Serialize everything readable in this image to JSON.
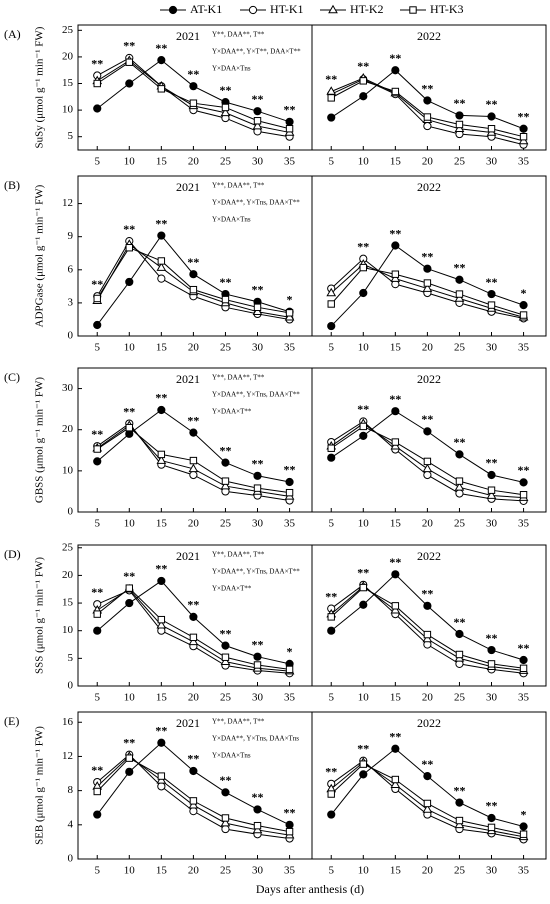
{
  "figure": {
    "xlabel": "Days after anthesis (d)"
  },
  "chart_data": [
    {
      "type": "line",
      "panel_label": "(A)",
      "title": "2021",
      "ylabel": "SuSy (μmol g⁻¹ min⁻¹ FW)",
      "annotations": [
        "Y**, DAA**, T**",
        "Y×DAA**, Y×T**, DAA×T**",
        "Y×DAA×Tns"
      ],
      "x": [
        5,
        10,
        15,
        20,
        25,
        30,
        35
      ],
      "xlim": [
        2,
        38.5
      ],
      "xticks": [
        5,
        10,
        15,
        20,
        25,
        30,
        35
      ],
      "ylim": [
        2.5,
        26
      ],
      "yticks": [
        5,
        10,
        15,
        20,
        25
      ],
      "significance": [
        "**",
        "**",
        "**",
        "**",
        "**",
        "**",
        "**"
      ],
      "series": [
        {
          "name": "AT-K1",
          "marker": "filled-circle",
          "color": "#000000",
          "values": [
            10.3,
            15,
            19.4,
            14.5,
            11.5,
            9.8,
            7.8
          ]
        },
        {
          "name": "HT-K1",
          "marker": "open-circle",
          "color": "#000000",
          "values": [
            16.5,
            19.8,
            14.5,
            10,
            8.5,
            6,
            5
          ]
        },
        {
          "name": "HT-K2",
          "marker": "open-triangle",
          "color": "#000000",
          "values": [
            15.5,
            19.3,
            14.5,
            10.8,
            9.5,
            7,
            5.8
          ]
        },
        {
          "name": "HT-K3",
          "marker": "open-square",
          "color": "#000000",
          "values": [
            15,
            19,
            14,
            11.3,
            10.5,
            8,
            6.5
          ]
        }
      ]
    },
    {
      "type": "line",
      "title": "2022",
      "x": [
        5,
        10,
        15,
        20,
        25,
        30,
        35
      ],
      "xlim": [
        2,
        38.5
      ],
      "xticks": [
        5,
        10,
        15,
        20,
        25,
        30,
        35
      ],
      "ylim": [
        2.5,
        26
      ],
      "significance": [
        "**",
        "**",
        "**",
        "**",
        "**",
        "**",
        "**"
      ],
      "series": [
        {
          "name": "AT-K1",
          "marker": "filled-circle",
          "color": "#000000",
          "values": [
            8.6,
            12.6,
            17.5,
            11.8,
            9,
            8.8,
            6.5
          ]
        },
        {
          "name": "HT-K1",
          "marker": "open-circle",
          "color": "#000000",
          "values": [
            13,
            15.8,
            13,
            7,
            5.5,
            5,
            3.5
          ]
        },
        {
          "name": "HT-K2",
          "marker": "open-triangle",
          "color": "#000000",
          "values": [
            13.5,
            16,
            13.2,
            8.2,
            6.5,
            5.8,
            4.2
          ]
        },
        {
          "name": "HT-K3",
          "marker": "open-square",
          "color": "#000000",
          "values": [
            12.3,
            15.5,
            13.5,
            8.7,
            7.3,
            6.5,
            5
          ]
        }
      ]
    },
    {
      "type": "line",
      "panel_label": "(B)",
      "title": "2021",
      "ylabel": "ADPGase (μmol g⁻¹ min⁻¹ FW)",
      "annotations": [
        "Y**, DAA**, T**",
        "Y×DAA**, Y×Tns, DAA×T**",
        "Y×DAA×Tns"
      ],
      "x": [
        5,
        10,
        15,
        20,
        25,
        30,
        35
      ],
      "xlim": [
        2,
        38.5
      ],
      "xticks": [
        5,
        10,
        15,
        20,
        25,
        30,
        35
      ],
      "ylim": [
        0,
        14.5
      ],
      "yticks": [
        0,
        3,
        6,
        9,
        12
      ],
      "significance": [
        "**",
        "**",
        "**",
        "**",
        "**",
        "**",
        "*"
      ],
      "series": [
        {
          "name": "AT-K1",
          "marker": "filled-circle",
          "color": "#000000",
          "values": [
            1,
            4.9,
            9.1,
            5.6,
            3.8,
            3.1,
            2.2
          ]
        },
        {
          "name": "HT-K1",
          "marker": "open-circle",
          "color": "#000000",
          "values": [
            3.6,
            8.6,
            5.2,
            3.6,
            2.6,
            2,
            1.5
          ]
        },
        {
          "name": "HT-K2",
          "marker": "open-triangle",
          "color": "#000000",
          "values": [
            3.2,
            8.3,
            6.2,
            4,
            3,
            2.2,
            1.7
          ]
        },
        {
          "name": "HT-K3",
          "marker": "open-square",
          "color": "#000000",
          "values": [
            3.4,
            8,
            6.8,
            4.2,
            3.3,
            2.6,
            2.1
          ]
        }
      ]
    },
    {
      "type": "line",
      "title": "2022",
      "x": [
        5,
        10,
        15,
        20,
        25,
        30,
        35
      ],
      "xlim": [
        2,
        38.5
      ],
      "xticks": [
        5,
        10,
        15,
        20,
        25,
        30,
        35
      ],
      "ylim": [
        0,
        14.5
      ],
      "significance": [
        null,
        "**",
        "**",
        "**",
        "**",
        "**",
        "*"
      ],
      "series": [
        {
          "name": "AT-K1",
          "marker": "filled-circle",
          "color": "#000000",
          "values": [
            0.9,
            3.9,
            8.2,
            6.1,
            5.1,
            3.8,
            2.8
          ]
        },
        {
          "name": "HT-K1",
          "marker": "open-circle",
          "color": "#000000",
          "values": [
            4.3,
            7,
            4.7,
            3.9,
            3,
            2.2,
            1.6
          ]
        },
        {
          "name": "HT-K2",
          "marker": "open-triangle",
          "color": "#000000",
          "values": [
            3.9,
            6.5,
            5.2,
            4.3,
            3.4,
            2.5,
            1.7
          ]
        },
        {
          "name": "HT-K3",
          "marker": "open-square",
          "color": "#000000",
          "values": [
            2.9,
            6.2,
            5.6,
            4.8,
            3.8,
            2.8,
            1.9
          ]
        }
      ]
    },
    {
      "type": "line",
      "panel_label": "(C)",
      "title": "2021",
      "ylabel": "GBSS (μmol g⁻¹ min⁻¹ FW)",
      "annotations": [
        "Y**, DAA**, T**",
        "Y×DAA**, Y×Tns, DAA×T**",
        "Y×DAA×T**"
      ],
      "x": [
        5,
        10,
        15,
        20,
        25,
        30,
        35
      ],
      "xlim": [
        2,
        38.5
      ],
      "xticks": [
        5,
        10,
        15,
        20,
        25,
        30,
        35
      ],
      "ylim": [
        0,
        35
      ],
      "yticks": [
        0,
        10,
        20,
        30
      ],
      "significance": [
        "**",
        "**",
        "**",
        "**",
        "**",
        "**",
        "**"
      ],
      "series": [
        {
          "name": "AT-K1",
          "marker": "filled-circle",
          "color": "#000000",
          "values": [
            12.3,
            19,
            24.8,
            19.3,
            12,
            8.8,
            7.3
          ]
        },
        {
          "name": "HT-K1",
          "marker": "open-circle",
          "color": "#000000",
          "values": [
            16,
            21.5,
            11.5,
            9,
            5,
            4,
            2.8
          ]
        },
        {
          "name": "HT-K2",
          "marker": "open-triangle",
          "color": "#000000",
          "values": [
            15.5,
            21,
            12.5,
            10.5,
            6.3,
            5,
            3.8
          ]
        },
        {
          "name": "HT-K3",
          "marker": "open-square",
          "color": "#000000",
          "values": [
            15.3,
            20.5,
            14,
            12.5,
            7.5,
            5.8,
            4.7
          ]
        }
      ]
    },
    {
      "type": "line",
      "title": "2022",
      "x": [
        5,
        10,
        15,
        20,
        25,
        30,
        35
      ],
      "xlim": [
        2,
        38.5
      ],
      "xticks": [
        5,
        10,
        15,
        20,
        25,
        30,
        35
      ],
      "ylim": [
        0,
        35
      ],
      "significance": [
        null,
        "**",
        "**",
        "**",
        "**",
        "**",
        "**"
      ],
      "series": [
        {
          "name": "AT-K1",
          "marker": "filled-circle",
          "color": "#000000",
          "values": [
            13.2,
            18.5,
            24.5,
            19.6,
            14,
            9,
            7.2
          ]
        },
        {
          "name": "HT-K1",
          "marker": "open-circle",
          "color": "#000000",
          "values": [
            17,
            22,
            15.2,
            9,
            4.5,
            3.2,
            2.7
          ]
        },
        {
          "name": "HT-K2",
          "marker": "open-triangle",
          "color": "#000000",
          "values": [
            16,
            21.5,
            16,
            10.5,
            6,
            4,
            3.5
          ]
        },
        {
          "name": "HT-K3",
          "marker": "open-square",
          "color": "#000000",
          "values": [
            15.5,
            20.8,
            17,
            12.3,
            7.5,
            5.3,
            4.2
          ]
        }
      ]
    },
    {
      "type": "line",
      "panel_label": "(D)",
      "title": "2021",
      "ylabel": "SSS (μmol g⁻¹ min⁻¹ FW)",
      "annotations": [
        "Y**, DAA**, T**",
        "Y×DAA**, Y×Tns, DAA×T**",
        "Y×DAA×T**"
      ],
      "x": [
        5,
        10,
        15,
        20,
        25,
        30,
        35
      ],
      "xlim": [
        2,
        38.5
      ],
      "xticks": [
        5,
        10,
        15,
        20,
        25,
        30,
        35
      ],
      "ylim": [
        0,
        25.5
      ],
      "yticks": [
        0,
        5,
        10,
        15,
        20,
        25
      ],
      "significance": [
        "**",
        "**",
        "**",
        "**",
        "**",
        "**",
        "*"
      ],
      "series": [
        {
          "name": "AT-K1",
          "marker": "filled-circle",
          "color": "#000000",
          "values": [
            10,
            15,
            19,
            12.5,
            7.3,
            5.3,
            4
          ]
        },
        {
          "name": "HT-K1",
          "marker": "open-circle",
          "color": "#000000",
          "values": [
            14.8,
            17.3,
            10,
            7.2,
            3.7,
            2.8,
            2.3
          ]
        },
        {
          "name": "HT-K2",
          "marker": "open-triangle",
          "color": "#000000",
          "values": [
            13.7,
            17.5,
            11,
            8,
            4.4,
            3.2,
            2.7
          ]
        },
        {
          "name": "HT-K3",
          "marker": "open-square",
          "color": "#000000",
          "values": [
            13,
            17.7,
            12,
            8.8,
            5.2,
            3.8,
            3
          ]
        }
      ]
    },
    {
      "type": "line",
      "title": "2022",
      "x": [
        5,
        10,
        15,
        20,
        25,
        30,
        35
      ],
      "xlim": [
        2,
        38.5
      ],
      "xticks": [
        5,
        10,
        15,
        20,
        25,
        30,
        35
      ],
      "ylim": [
        0,
        25.5
      ],
      "significance": [
        "**",
        "**",
        "**",
        "**",
        "**",
        "**",
        "**"
      ],
      "series": [
        {
          "name": "AT-K1",
          "marker": "filled-circle",
          "color": "#000000",
          "values": [
            10,
            14.7,
            20.2,
            14.5,
            9.4,
            6.5,
            4.7
          ]
        },
        {
          "name": "HT-K1",
          "marker": "open-circle",
          "color": "#000000",
          "values": [
            14,
            18.3,
            13,
            7.5,
            4,
            3,
            2.3
          ]
        },
        {
          "name": "HT-K2",
          "marker": "open-triangle",
          "color": "#000000",
          "values": [
            13,
            18,
            13.7,
            8.5,
            5,
            3.5,
            2.8
          ]
        },
        {
          "name": "HT-K3",
          "marker": "open-square",
          "color": "#000000",
          "values": [
            12.5,
            17.8,
            14.5,
            9.3,
            5.7,
            4,
            3.2
          ]
        }
      ]
    },
    {
      "type": "line",
      "panel_label": "(E)",
      "title": "2021",
      "ylabel": "SEB (μmol g⁻¹ min⁻¹ FW)",
      "annotations": [
        "Y**, DAA**, T**",
        "Y×DAA**, Y×Tns, DAA×Tns",
        "Y×DAA×Tns"
      ],
      "x": [
        5,
        10,
        15,
        20,
        25,
        30,
        35
      ],
      "xlim": [
        2,
        38.5
      ],
      "xticks": [
        5,
        10,
        15,
        20,
        25,
        30,
        35
      ],
      "ylim": [
        0,
        17.2
      ],
      "yticks": [
        0,
        4,
        8,
        12,
        16
      ],
      "significance": [
        "**",
        "**",
        "**",
        "**",
        "**",
        "**",
        "**"
      ],
      "series": [
        {
          "name": "AT-K1",
          "marker": "filled-circle",
          "color": "#000000",
          "values": [
            5.2,
            10.2,
            13.6,
            10.3,
            7.8,
            5.8,
            4
          ]
        },
        {
          "name": "HT-K1",
          "marker": "open-circle",
          "color": "#000000",
          "values": [
            9,
            12.2,
            8.5,
            5.6,
            3.5,
            2.9,
            2.4
          ]
        },
        {
          "name": "HT-K2",
          "marker": "open-triangle",
          "color": "#000000",
          "values": [
            8.5,
            12,
            9.2,
            6.3,
            4.2,
            3.4,
            2.8
          ]
        },
        {
          "name": "HT-K3",
          "marker": "open-square",
          "color": "#000000",
          "values": [
            7.9,
            11.8,
            9.7,
            6.8,
            4.8,
            3.9,
            3.2
          ]
        }
      ]
    },
    {
      "type": "line",
      "title": "2022",
      "x": [
        5,
        10,
        15,
        20,
        25,
        30,
        35
      ],
      "xlim": [
        2,
        38.5
      ],
      "xticks": [
        5,
        10,
        15,
        20,
        25,
        30,
        35
      ],
      "ylim": [
        0,
        17.2
      ],
      "significance": [
        "**",
        "**",
        "**",
        "**",
        "**",
        "**",
        "*"
      ],
      "series": [
        {
          "name": "AT-K1",
          "marker": "filled-circle",
          "color": "#000000",
          "values": [
            5.2,
            9.9,
            12.9,
            9.7,
            6.6,
            4.8,
            3.8
          ]
        },
        {
          "name": "HT-K1",
          "marker": "open-circle",
          "color": "#000000",
          "values": [
            8.8,
            11.5,
            8.2,
            5.2,
            3.5,
            3,
            2.3
          ]
        },
        {
          "name": "HT-K2",
          "marker": "open-triangle",
          "color": "#000000",
          "values": [
            8.2,
            11.3,
            8.7,
            5.8,
            4,
            3.3,
            2.6
          ]
        },
        {
          "name": "HT-K3",
          "marker": "open-square",
          "color": "#000000",
          "values": [
            7.6,
            11.1,
            9.3,
            6.5,
            4.5,
            3.7,
            2.9
          ]
        }
      ]
    }
  ]
}
